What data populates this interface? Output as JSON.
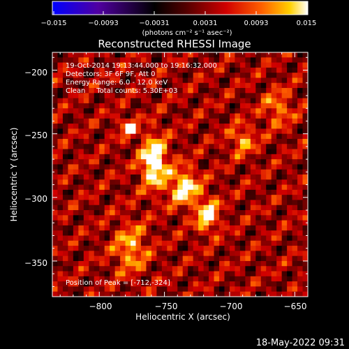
{
  "title": "Reconstructed RHESSI Image",
  "colorbar": {
    "tick_labels": [
      "−0.015",
      "−0.0093",
      "−0.0031",
      "0.0031",
      "0.0093",
      "0.015"
    ],
    "unit_label": "(photons cm⁻² s⁻¹ asec⁻²)"
  },
  "annotations": {
    "time_range": "19-Oct-2014 19:13:44.000 to 19:16:32.000",
    "detectors": "Detectors: 3F 6F 9F, Att 0",
    "energy_range": "Energy Range: 6.0 - 12.0 keV",
    "clean_counts": "Clean     Total counts: 5.30E+03",
    "peak_position": "Position of Peak = [-712,-324]"
  },
  "axes": {
    "xlabel": "Heliocentric X (arcsec)",
    "ylabel": "Heliocentric Y (arcsec)",
    "xticks": [
      "−800",
      "−750",
      "−700",
      "−650"
    ],
    "yticks": [
      "−200",
      "−250",
      "−300",
      "−350"
    ]
  },
  "footer_timestamp": "18-May-2022 09:31",
  "colors": {
    "background": "#000000",
    "colormap": [
      "#0000ff",
      "#5000a0",
      "#000000",
      "#500000",
      "#d00000",
      "#ff6000",
      "#ffd000",
      "#ffffff"
    ]
  },
  "chart_data": {
    "type": "heatmap",
    "title": "Reconstructed RHESSI Image",
    "xlabel": "Heliocentric X (arcsec)",
    "ylabel": "Heliocentric Y (arcsec)",
    "xlim": [
      -836,
      -640
    ],
    "ylim": [
      -378,
      -186
    ],
    "color_range": [
      -0.015,
      0.015
    ],
    "color_unit": "photons cm^-2 s^-1 asec^-2",
    "peak_position": [
      -712,
      -324
    ],
    "sources": [
      {
        "x": -758,
        "y": -272,
        "amplitude": 0.015,
        "sigma_x": 7,
        "sigma_y": 14
      },
      {
        "x": -735,
        "y": -292,
        "amplitude": 0.0125,
        "sigma_x": 8,
        "sigma_y": 10
      },
      {
        "x": -717,
        "y": -314,
        "amplitude": 0.013,
        "sigma_x": 6,
        "sigma_y": 9
      },
      {
        "x": -778,
        "y": -245,
        "amplitude": 0.0095,
        "sigma_x": 5,
        "sigma_y": 5
      },
      {
        "x": -776,
        "y": -340,
        "amplitude": 0.0085,
        "sigma_x": 9,
        "sigma_y": 14
      },
      {
        "x": -690,
        "y": -255,
        "amplitude": 0.008,
        "sigma_x": 7,
        "sigma_y": 8
      },
      {
        "x": -663,
        "y": -230,
        "amplitude": 0.007,
        "sigma_x": 8,
        "sigma_y": 10
      }
    ]
  }
}
